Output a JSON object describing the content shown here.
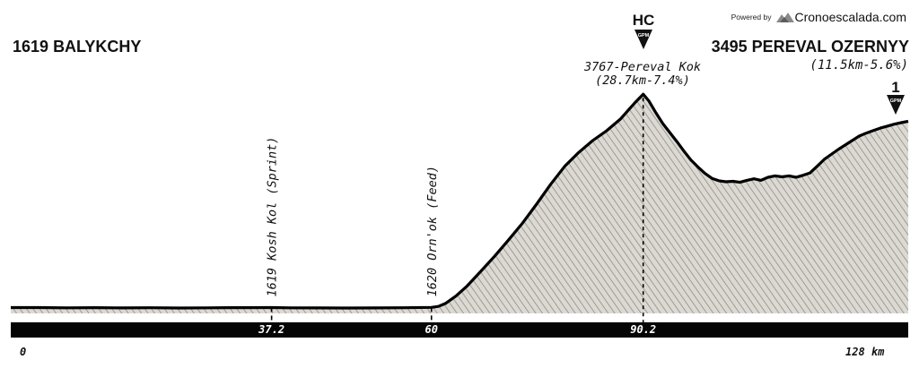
{
  "brand": {
    "powered_by": "Powered by",
    "name": "Cronoescalada.com"
  },
  "start": {
    "altitude": "1619",
    "name": "BALYKCHY"
  },
  "finish": {
    "altitude": "3495",
    "name": "PEREVAL OZERNYY",
    "stats": "(11.5km-5.6%)"
  },
  "summit": {
    "title": "3767-Pereval Kok",
    "stats": "(28.7km-7.4%)"
  },
  "climb_badges": [
    {
      "category": "HC",
      "tag": "GPM"
    },
    {
      "category": "1",
      "tag": "GPM"
    }
  ],
  "colors": {
    "line": "#000000",
    "fill": "#d6d3cc",
    "hatch": "#8a8783",
    "axis_bar": "#050505"
  },
  "chart_data": {
    "type": "area",
    "xlabel_unit": "km",
    "xlim": [
      0,
      128
    ],
    "ylim": [
      1560,
      3850
    ],
    "profile": {
      "x": [
        0,
        4,
        8,
        12,
        16,
        20,
        24,
        28,
        32,
        37.2,
        40,
        44,
        48,
        52,
        56,
        60,
        61,
        62,
        63.5,
        65,
        67,
        69,
        71,
        73,
        75,
        77,
        79,
        81,
        83,
        85,
        87,
        88,
        89,
        90.2,
        91,
        92,
        93,
        94,
        95,
        96,
        97,
        98,
        99,
        100,
        101,
        102,
        103,
        104,
        105,
        106,
        107,
        108,
        109,
        110,
        111,
        112,
        113,
        114,
        115,
        116,
        117,
        118,
        119,
        120,
        121,
        122,
        123,
        124,
        125,
        126,
        127,
        128
      ],
      "y": [
        1619,
        1619,
        1616,
        1618,
        1615,
        1617,
        1614,
        1616,
        1618,
        1619,
        1616,
        1615,
        1614,
        1615,
        1617,
        1620,
        1630,
        1660,
        1735,
        1830,
        1980,
        2135,
        2300,
        2470,
        2660,
        2860,
        3040,
        3180,
        3300,
        3400,
        3520,
        3600,
        3680,
        3767,
        3700,
        3580,
        3470,
        3380,
        3290,
        3195,
        3105,
        3035,
        2970,
        2920,
        2895,
        2885,
        2890,
        2880,
        2900,
        2915,
        2900,
        2930,
        2945,
        2935,
        2945,
        2930,
        2950,
        2975,
        3040,
        3110,
        3160,
        3210,
        3255,
        3300,
        3345,
        3375,
        3400,
        3425,
        3445,
        3465,
        3480,
        3495
      ]
    },
    "waypoints": [
      {
        "km": 37.2,
        "label": "1619 Kosh Kol (Sprint)"
      },
      {
        "km": 60,
        "label": "1620 Orn'ok (Feed)"
      }
    ],
    "axis_ticks": [
      {
        "km": 0,
        "label": "0"
      },
      {
        "km": 37.2,
        "label": "37.2"
      },
      {
        "km": 60,
        "label": "60"
      },
      {
        "km": 90.2,
        "label": "90.2"
      },
      {
        "km": 128,
        "label": "128 km"
      }
    ]
  }
}
